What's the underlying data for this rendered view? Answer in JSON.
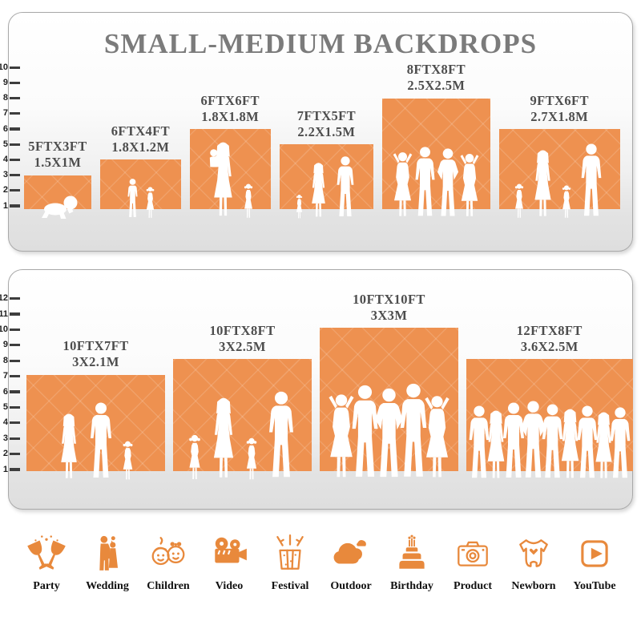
{
  "title": "SMALL-MEDIUM BACKDROPS",
  "accent_color": "#ee9150",
  "icon_color": "#e8893c",
  "panels": [
    {
      "name": "small-medium",
      "scale_max": 10,
      "backdrops": [
        {
          "size_ft": "5FTX3FT",
          "size_m": "1.5X1M",
          "width_ft": 5,
          "height_ft": 3,
          "overlap": 0,
          "figures": [
            [
              "baby",
              32
            ]
          ]
        },
        {
          "size_ft": "6FTX4FT",
          "size_m": "1.8X1.2M",
          "width_ft": 6,
          "height_ft": 4,
          "overlap": 0,
          "figures": [
            [
              "boy",
              52
            ],
            [
              "girl",
              42
            ]
          ]
        },
        {
          "size_ft": "6FTX6FT",
          "size_m": "1.8X1.8M",
          "width_ft": 6,
          "height_ft": 6,
          "overlap": 0,
          "figures": [
            [
              "woman-baby",
              98
            ],
            [
              "girl",
              46
            ]
          ]
        },
        {
          "size_ft": "7FTX5FT",
          "size_m": "2.2X1.5M",
          "width_ft": 7,
          "height_ft": 5,
          "overlap": 0,
          "figures": [
            [
              "girl",
              32
            ],
            [
              "woman",
              72
            ],
            [
              "man",
              80
            ]
          ]
        },
        {
          "size_ft": "8FTX8FT",
          "size_m": "2.5X2.5M",
          "width_ft": 8,
          "height_ft": 8,
          "overlap": 8,
          "figures": [
            [
              "woman-up",
              88
            ],
            [
              "man",
              92
            ],
            [
              "man-hips",
              90
            ],
            [
              "woman-up",
              86
            ]
          ]
        },
        {
          "size_ft": "9FTX6FT",
          "size_m": "2.7X1.8M",
          "width_ft": 9,
          "height_ft": 6,
          "overlap": 0,
          "figures": [
            [
              "girl",
              46
            ],
            [
              "woman",
              88
            ],
            [
              "girl",
              44
            ],
            [
              "man",
              96
            ]
          ]
        }
      ]
    },
    {
      "name": "medium-large",
      "scale_max": 12,
      "backdrops": [
        {
          "size_ft": "10FTX7FT",
          "size_m": "3X2.1M",
          "width_ft": 10,
          "height_ft": 7,
          "overlap": 0,
          "figures": [
            [
              "woman",
              86
            ],
            [
              "man",
              100
            ],
            [
              "girl",
              52
            ]
          ]
        },
        {
          "size_ft": "10FTX8FT",
          "size_m": "3X2.5M",
          "width_ft": 10,
          "height_ft": 8,
          "overlap": 0,
          "figures": [
            [
              "girl",
              60
            ],
            [
              "woman",
              106
            ],
            [
              "girl",
              56
            ],
            [
              "man",
              114
            ]
          ]
        },
        {
          "size_ft": "10FTX10FT",
          "size_m": "3X3M",
          "width_ft": 10,
          "height_ft": 10,
          "overlap": 18,
          "figures": [
            [
              "woman-up",
              114
            ],
            [
              "man",
              122
            ],
            [
              "man-hips",
              118
            ],
            [
              "man",
              124
            ],
            [
              "woman-up",
              112
            ]
          ]
        },
        {
          "size_ft": "12FTX8FT",
          "size_m": "3.6X2.5M",
          "width_ft": 12,
          "height_ft": 8,
          "overlap": 16,
          "figures": [
            [
              "man",
              96
            ],
            [
              "woman",
              90
            ],
            [
              "man",
              100
            ],
            [
              "man-hips",
              102
            ],
            [
              "man",
              98
            ],
            [
              "woman",
              92
            ],
            [
              "man",
              96
            ],
            [
              "woman",
              88
            ],
            [
              "man",
              94
            ]
          ]
        }
      ]
    }
  ],
  "categories": [
    {
      "label": "Party",
      "icon": "party-icon"
    },
    {
      "label": "Wedding",
      "icon": "wedding-icon"
    },
    {
      "label": "Children",
      "icon": "children-icon"
    },
    {
      "label": "Video",
      "icon": "video-icon"
    },
    {
      "label": "Festival",
      "icon": "festival-icon"
    },
    {
      "label": "Outdoor",
      "icon": "outdoor-icon"
    },
    {
      "label": "Birthday",
      "icon": "birthday-icon"
    },
    {
      "label": "Product",
      "icon": "product-icon"
    },
    {
      "label": "Newborn",
      "icon": "newborn-icon"
    },
    {
      "label": "YouTube",
      "icon": "youtube-icon"
    }
  ]
}
